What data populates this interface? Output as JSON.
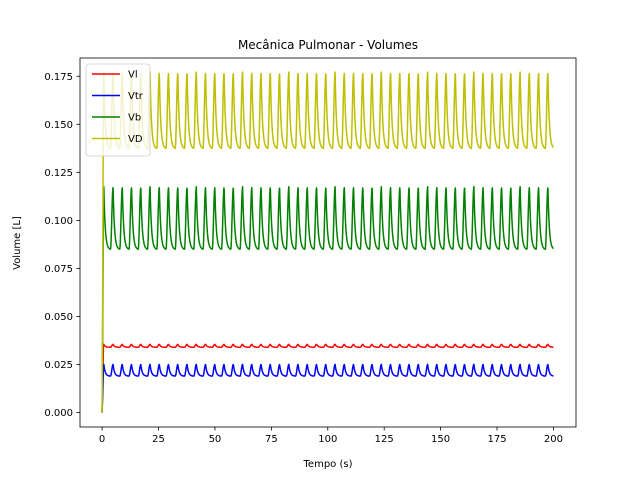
{
  "chart_data": {
    "type": "line",
    "title": "Mecânica Pulmonar - Volumes",
    "xlabel": "Tempo (s)",
    "ylabel": "Volume [L]",
    "xlim": [
      -9.8,
      210
    ],
    "ylim": [
      -0.0075,
      0.1845
    ],
    "xticks": [
      0,
      25,
      50,
      75,
      100,
      125,
      150,
      175,
      200
    ],
    "xtick_labels": [
      "0",
      "25",
      "50",
      "75",
      "100",
      "125",
      "150",
      "175",
      "200"
    ],
    "yticks": [
      0.0,
      0.025,
      0.05,
      0.075,
      0.1,
      0.125,
      0.15,
      0.175
    ],
    "ytick_labels": [
      "0.000",
      "0.025",
      "0.050",
      "0.075",
      "0.100",
      "0.125",
      "0.150",
      "0.175"
    ],
    "grid": false,
    "legend_position": "top-left",
    "x_range": [
      0,
      200
    ],
    "breath_period_s": 4.1,
    "series": [
      {
        "name": "Vl",
        "color": "#ff0000",
        "initial": 0.0,
        "min": 0.034,
        "max": 0.0355
      },
      {
        "name": "Vtr",
        "color": "#0000ff",
        "initial": 0.0,
        "min": 0.019,
        "max": 0.025
      },
      {
        "name": "Vb",
        "color": "#008000",
        "initial": 0.0,
        "min": 0.085,
        "max": 0.117
      },
      {
        "name": "VD",
        "color": "#bfbf00",
        "initial": 0.0,
        "min": 0.1375,
        "max": 0.1765
      }
    ]
  }
}
